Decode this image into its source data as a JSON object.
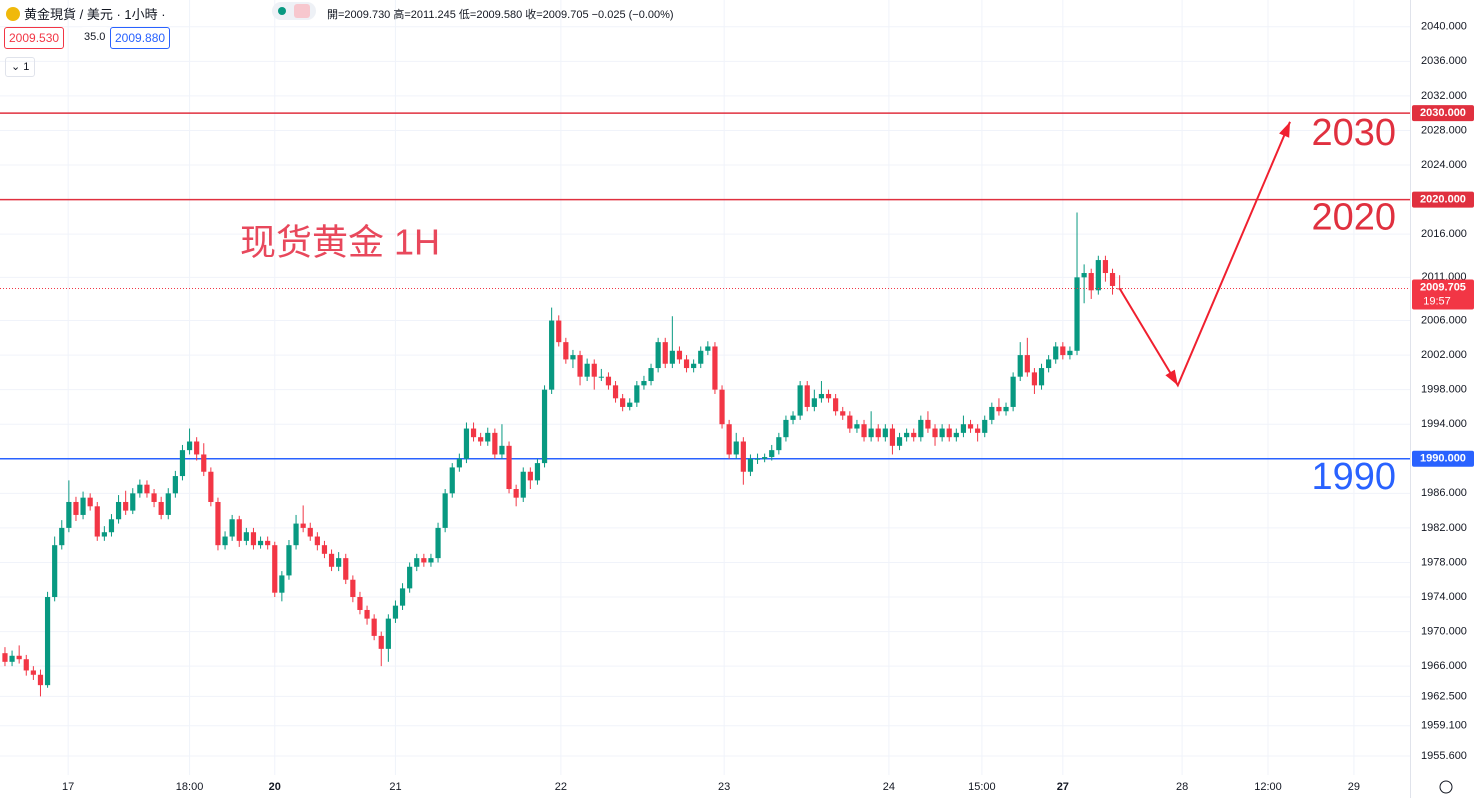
{
  "header": {
    "symbol": "黄金現貨 / 美元 · 1小時 ·",
    "quote": "開=2009.730 高=2011.245 低=2009.580 收=2009.705 −0.025 (−0.00%)",
    "sell": "2009.530",
    "spread": "35.0",
    "buy": "2009.880",
    "interval": "1"
  },
  "chart_data": {
    "type": "candlestick",
    "up_color": "#089981",
    "down_color": "#f23645",
    "grid": true,
    "xlim": [
      -0.7,
      197.9
    ],
    "ylim": [
      1953.4,
      2043.1
    ],
    "xticks": [
      {
        "value": 8.9,
        "label": "17"
      },
      {
        "value": 26,
        "label": "18:00"
      },
      {
        "value": 38,
        "label": "20"
      },
      {
        "value": 55,
        "label": "21"
      },
      {
        "value": 78.3,
        "label": "22"
      },
      {
        "value": 101.3,
        "label": "23"
      },
      {
        "value": 124.5,
        "label": "24"
      },
      {
        "value": 137.6,
        "label": "15:00"
      },
      {
        "value": 149,
        "label": "27"
      },
      {
        "value": 165.8,
        "label": "28"
      },
      {
        "value": 177.9,
        "label": "12:00"
      },
      {
        "value": 190,
        "label": "29"
      }
    ],
    "yticks": [
      {
        "value": 2040,
        "label": "2040.000"
      },
      {
        "value": 2036,
        "label": "2036.000"
      },
      {
        "value": 2032,
        "label": "2032.000"
      },
      {
        "value": 2028,
        "label": "2028.000"
      },
      {
        "value": 2024,
        "label": "2024.000"
      },
      {
        "value": 2016,
        "label": "2016.000"
      },
      {
        "value": 2011,
        "label": "2011.000"
      },
      {
        "value": 2006,
        "label": "2006.000"
      },
      {
        "value": 2002,
        "label": "2002.000"
      },
      {
        "value": 1998,
        "label": "1998.000"
      },
      {
        "value": 1994,
        "label": "1994.000"
      },
      {
        "value": 1986,
        "label": "1986.000"
      },
      {
        "value": 1982,
        "label": "1982.000"
      },
      {
        "value": 1978,
        "label": "1978.000"
      },
      {
        "value": 1974,
        "label": "1974.000"
      },
      {
        "value": 1970,
        "label": "1970.000"
      },
      {
        "value": 1966,
        "label": "1966.000"
      },
      {
        "value": 1962.5,
        "label": "1962.500"
      },
      {
        "value": 1959.1,
        "label": "1959.100"
      },
      {
        "value": 1955.6,
        "label": "1955.600"
      }
    ],
    "levels": [
      {
        "value": 2030,
        "label": "2030.000",
        "color": "#e0303f"
      },
      {
        "value": 2020,
        "label": "2020.000",
        "color": "#e0303f"
      },
      {
        "value": 1990,
        "label": "1990.000",
        "color": "#2962ff"
      }
    ],
    "last_price": {
      "value": 2009.705,
      "time": "19:57",
      "color": "#f23645"
    },
    "annotation": "现货黄金 1H",
    "projection": {
      "x": [
        157,
        165.2,
        181
      ],
      "y": [
        2009.705,
        1998.5,
        2029
      ],
      "color": "#f0202f"
    },
    "ohlc": [
      [
        1967.5,
        1968.2,
        1966.0,
        1966.5
      ],
      [
        1966.5,
        1967.8,
        1966.0,
        1967.2
      ],
      [
        1967.2,
        1968.4,
        1966.3,
        1966.8
      ],
      [
        1966.8,
        1967.3,
        1964.9,
        1965.5
      ],
      [
        1965.5,
        1966.0,
        1964.4,
        1965.0
      ],
      [
        1965.0,
        1965.6,
        1962.5,
        1963.8
      ],
      [
        1963.8,
        1974.6,
        1963.5,
        1974.0
      ],
      [
        1974.0,
        1981.0,
        1973.5,
        1980.0
      ],
      [
        1980.0,
        1982.9,
        1979.5,
        1982.0
      ],
      [
        1982.0,
        1987.5,
        1981.5,
        1985.0
      ],
      [
        1985.0,
        1985.6,
        1982.8,
        1983.5
      ],
      [
        1983.5,
        1986.2,
        1983.0,
        1985.5
      ],
      [
        1985.5,
        1986.0,
        1984.0,
        1984.5
      ],
      [
        1984.5,
        1985.0,
        1980.5,
        1981.0
      ],
      [
        1981.0,
        1982.2,
        1980.5,
        1981.5
      ],
      [
        1981.5,
        1983.6,
        1981.0,
        1983.0
      ],
      [
        1983.0,
        1985.8,
        1982.5,
        1985.0
      ],
      [
        1985.0,
        1986.3,
        1983.5,
        1984.0
      ],
      [
        1984.0,
        1986.6,
        1983.6,
        1986.0
      ],
      [
        1986.0,
        1987.6,
        1985.5,
        1987.0
      ],
      [
        1987.0,
        1987.5,
        1985.5,
        1986.0
      ],
      [
        1986.0,
        1986.5,
        1984.4,
        1985.0
      ],
      [
        1985.0,
        1985.6,
        1983.0,
        1983.5
      ],
      [
        1983.5,
        1986.6,
        1983.0,
        1986.0
      ],
      [
        1986.0,
        1988.6,
        1985.5,
        1988.0
      ],
      [
        1988.0,
        1991.6,
        1987.5,
        1991.0
      ],
      [
        1991.0,
        1993.5,
        1990.5,
        1992.0
      ],
      [
        1992.0,
        1992.5,
        1989.8,
        1990.5
      ],
      [
        1990.5,
        1991.8,
        1988.0,
        1988.5
      ],
      [
        1988.5,
        1989.0,
        1984.5,
        1985.0
      ],
      [
        1985.0,
        1985.5,
        1979.4,
        1980.0
      ],
      [
        1980.0,
        1981.6,
        1979.5,
        1981.0
      ],
      [
        1981.0,
        1983.5,
        1980.5,
        1983.0
      ],
      [
        1983.0,
        1983.4,
        1979.8,
        1980.5
      ],
      [
        1980.5,
        1982.0,
        1980.0,
        1981.5
      ],
      [
        1981.5,
        1982.0,
        1979.5,
        1980.0
      ],
      [
        1980.0,
        1981.0,
        1979.6,
        1980.5
      ],
      [
        1980.5,
        1981.0,
        1979.5,
        1980.0
      ],
      [
        1980.0,
        1980.4,
        1974.0,
        1974.5
      ],
      [
        1974.5,
        1977.0,
        1973.5,
        1976.5
      ],
      [
        1976.5,
        1980.6,
        1976.0,
        1980.0
      ],
      [
        1980.0,
        1983.5,
        1979.5,
        1982.5
      ],
      [
        1982.5,
        1984.6,
        1981.5,
        1982.0
      ],
      [
        1982.0,
        1982.6,
        1980.5,
        1981.0
      ],
      [
        1981.0,
        1981.5,
        1979.4,
        1980.0
      ],
      [
        1980.0,
        1980.5,
        1978.5,
        1979.0
      ],
      [
        1979.0,
        1979.5,
        1977.0,
        1977.5
      ],
      [
        1977.5,
        1979.2,
        1977.0,
        1978.5
      ],
      [
        1978.5,
        1979.0,
        1975.5,
        1976.0
      ],
      [
        1976.0,
        1976.5,
        1973.4,
        1974.0
      ],
      [
        1974.0,
        1974.6,
        1972.0,
        1972.5
      ],
      [
        1972.5,
        1973.0,
        1970.8,
        1971.5
      ],
      [
        1971.5,
        1972.0,
        1969.0,
        1969.5
      ],
      [
        1969.5,
        1970.0,
        1966.0,
        1968.0
      ],
      [
        1968.0,
        1972.0,
        1966.5,
        1971.5
      ],
      [
        1971.5,
        1973.6,
        1971.0,
        1973.0
      ],
      [
        1973.0,
        1975.6,
        1972.5,
        1975.0
      ],
      [
        1975.0,
        1978.0,
        1974.5,
        1977.5
      ],
      [
        1977.5,
        1979.0,
        1977.0,
        1978.5
      ],
      [
        1978.5,
        1979.0,
        1977.5,
        1978.0
      ],
      [
        1978.0,
        1979.0,
        1977.5,
        1978.5
      ],
      [
        1978.5,
        1982.6,
        1978.0,
        1982.0
      ],
      [
        1982.0,
        1986.5,
        1981.5,
        1986.0
      ],
      [
        1986.0,
        1989.5,
        1985.5,
        1989.0
      ],
      [
        1989.0,
        1990.6,
        1988.5,
        1990.0
      ],
      [
        1990.0,
        1994.2,
        1989.5,
        1993.5
      ],
      [
        1993.5,
        1994.2,
        1992.0,
        1992.5
      ],
      [
        1992.5,
        1993.0,
        1991.5,
        1992.0
      ],
      [
        1992.0,
        1993.6,
        1991.5,
        1993.0
      ],
      [
        1993.0,
        1993.5,
        1990.0,
        1990.5
      ],
      [
        1990.5,
        1994.0,
        1990.0,
        1991.5
      ],
      [
        1991.5,
        1992.0,
        1986.0,
        1986.5
      ],
      [
        1986.5,
        1987.0,
        1984.5,
        1985.5
      ],
      [
        1985.5,
        1989.0,
        1985.0,
        1988.5
      ],
      [
        1988.5,
        1989.0,
        1986.5,
        1987.5
      ],
      [
        1987.5,
        1990.0,
        1987.0,
        1989.5
      ],
      [
        1989.5,
        1998.5,
        1989.0,
        1998.0
      ],
      [
        1998.0,
        2007.5,
        1997.5,
        2006.0
      ],
      [
        2006.0,
        2006.6,
        2003.0,
        2003.5
      ],
      [
        2003.5,
        2004.0,
        2001.0,
        2001.5
      ],
      [
        2001.5,
        2002.6,
        2000.5,
        2002.0
      ],
      [
        2002.0,
        2002.5,
        1998.5,
        1999.5
      ],
      [
        1999.5,
        2001.6,
        1999.0,
        2001.0
      ],
      [
        2001.0,
        2001.5,
        1998.0,
        1999.5
      ],
      [
        1999.5,
        2000.4,
        1999.0,
        1999.5
      ],
      [
        1999.5,
        2000.0,
        1998.0,
        1998.5
      ],
      [
        1998.5,
        1999.0,
        1996.5,
        1997.0
      ],
      [
        1997.0,
        1997.5,
        1995.5,
        1996.0
      ],
      [
        1996.0,
        1997.0,
        1995.6,
        1996.5
      ],
      [
        1996.5,
        1999.0,
        1996.0,
        1998.5
      ],
      [
        1998.5,
        1999.6,
        1998.0,
        1999.0
      ],
      [
        1999.0,
        2001.0,
        1998.5,
        2000.5
      ],
      [
        2000.5,
        2004.0,
        2000.0,
        2003.5
      ],
      [
        2003.5,
        2004.0,
        2000.5,
        2001.0
      ],
      [
        2001.0,
        2006.5,
        2000.5,
        2002.5
      ],
      [
        2002.5,
        2003.0,
        2001.0,
        2001.5
      ],
      [
        2001.5,
        2002.0,
        2000.0,
        2000.5
      ],
      [
        2000.5,
        2001.5,
        2000.0,
        2001.0
      ],
      [
        2001.0,
        2003.0,
        2000.5,
        2002.5
      ],
      [
        2002.5,
        2003.6,
        2002.0,
        2003.0
      ],
      [
        2003.0,
        2003.5,
        1997.5,
        1998.0
      ],
      [
        1998.0,
        1998.5,
        1993.5,
        1994.0
      ],
      [
        1994.0,
        1994.5,
        1990.0,
        1990.5
      ],
      [
        1990.5,
        1993.0,
        1990.0,
        1992.0
      ],
      [
        1992.0,
        1992.5,
        1987.0,
        1988.5
      ],
      [
        1988.5,
        1990.5,
        1988.0,
        1990.0
      ],
      [
        1990.0,
        1990.6,
        1989.4,
        1990.0
      ],
      [
        1990.0,
        1990.6,
        1989.6,
        1990.2
      ],
      [
        1990.2,
        1991.6,
        1989.8,
        1991.0
      ],
      [
        1991.0,
        1993.0,
        1990.5,
        1992.5
      ],
      [
        1992.5,
        1995.0,
        1992.0,
        1994.5
      ],
      [
        1994.5,
        1995.5,
        1994.0,
        1995.0
      ],
      [
        1995.0,
        1999.0,
        1994.5,
        1998.5
      ],
      [
        1998.5,
        1999.0,
        1995.5,
        1996.0
      ],
      [
        1996.0,
        1998.0,
        1995.5,
        1997.0
      ],
      [
        1997.0,
        1999.0,
        1996.5,
        1997.5
      ],
      [
        1997.5,
        1998.0,
        1996.5,
        1997.0
      ],
      [
        1997.0,
        1997.5,
        1995.0,
        1995.5
      ],
      [
        1995.5,
        1996.0,
        1994.5,
        1995.0
      ],
      [
        1995.0,
        1995.5,
        1993.0,
        1993.5
      ],
      [
        1993.5,
        1994.5,
        1993.0,
        1994.0
      ],
      [
        1994.0,
        1994.5,
        1992.0,
        1992.5
      ],
      [
        1992.5,
        1995.5,
        1992.0,
        1993.5
      ],
      [
        1993.5,
        1994.0,
        1992.0,
        1992.5
      ],
      [
        1992.5,
        1994.0,
        1992.0,
        1993.5
      ],
      [
        1993.5,
        1994.0,
        1990.5,
        1991.5
      ],
      [
        1991.5,
        1993.0,
        1991.0,
        1992.5
      ],
      [
        1992.5,
        1993.5,
        1992.0,
        1993.0
      ],
      [
        1993.0,
        1993.5,
        1992.0,
        1992.5
      ],
      [
        1992.5,
        1995.0,
        1992.0,
        1994.5
      ],
      [
        1994.5,
        1995.5,
        1993.0,
        1993.5
      ],
      [
        1993.5,
        1994.0,
        1991.5,
        1992.5
      ],
      [
        1992.5,
        1994.0,
        1992.0,
        1993.5
      ],
      [
        1993.5,
        1994.0,
        1992.0,
        1992.5
      ],
      [
        1992.5,
        1993.5,
        1992.0,
        1993.0
      ],
      [
        1993.0,
        1995.0,
        1992.5,
        1994.0
      ],
      [
        1994.0,
        1994.5,
        1993.0,
        1993.5
      ],
      [
        1993.5,
        1994.0,
        1992.0,
        1993.0
      ],
      [
        1993.0,
        1995.0,
        1992.5,
        1994.5
      ],
      [
        1994.5,
        1996.5,
        1994.0,
        1996.0
      ],
      [
        1996.0,
        1997.0,
        1995.0,
        1995.5
      ],
      [
        1995.5,
        1996.5,
        1995.0,
        1996.0
      ],
      [
        1996.0,
        2000.0,
        1995.5,
        1999.5
      ],
      [
        1999.5,
        2003.5,
        1999.0,
        2002.0
      ],
      [
        2002.0,
        2004.0,
        1999.5,
        2000.0
      ],
      [
        2000.0,
        2000.5,
        1997.5,
        1998.5
      ],
      [
        1998.5,
        2001.0,
        1998.0,
        2000.5
      ],
      [
        2000.5,
        2002.0,
        2000.0,
        2001.5
      ],
      [
        2001.5,
        2003.5,
        2001.0,
        2003.0
      ],
      [
        2003.0,
        2003.5,
        2001.5,
        2002.0
      ],
      [
        2002.0,
        2003.0,
        2001.5,
        2002.5
      ],
      [
        2002.5,
        2018.5,
        2002.0,
        2011.0
      ],
      [
        2011.0,
        2012.5,
        2008.0,
        2011.5
      ],
      [
        2011.5,
        2012.0,
        2008.5,
        2009.5
      ],
      [
        2009.5,
        2013.5,
        2009.0,
        2013.0
      ],
      [
        2013.0,
        2013.5,
        2010.5,
        2011.5
      ],
      [
        2011.5,
        2012.0,
        2009.0,
        2010.0
      ],
      [
        2009.73,
        2011.245,
        2009.58,
        2009.705
      ]
    ]
  }
}
